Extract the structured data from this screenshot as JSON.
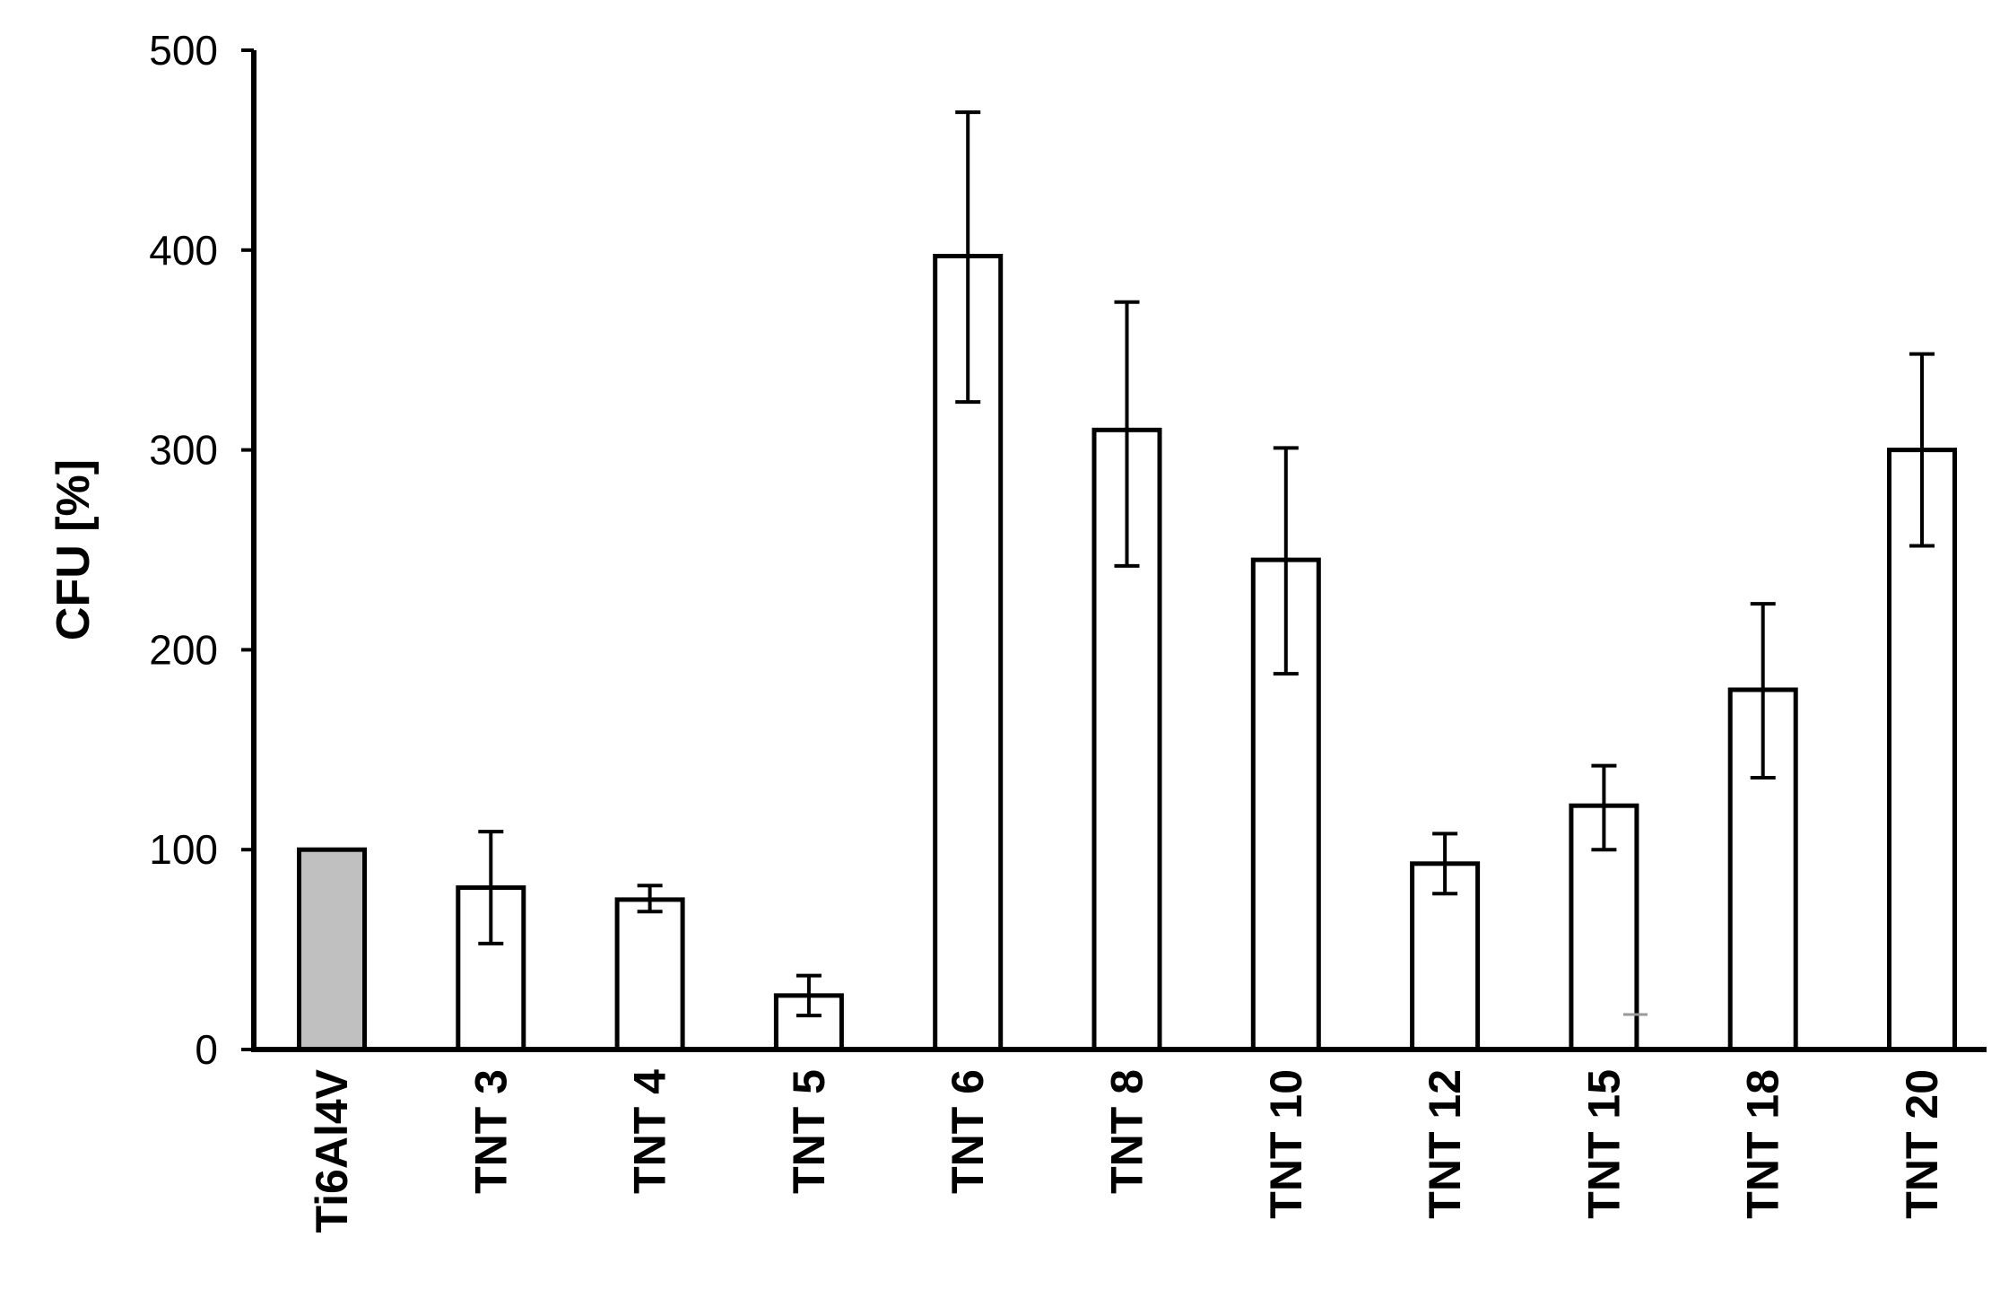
{
  "chart_data": {
    "type": "bar",
    "title": "",
    "xlabel": "",
    "ylabel": "CFU [%]",
    "ylim": [
      0,
      500
    ],
    "yticks": [
      "0",
      "100",
      "200",
      "300",
      "400",
      "500"
    ],
    "grid": false,
    "legend": "none",
    "categories": [
      "Ti6Al4V",
      "TNT 3",
      "TNT 4",
      "TNT 5",
      "TNT 6",
      "TNT 8",
      "TNT 10",
      "TNT 12",
      "TNT 15",
      "TNT 18",
      "TNT 20"
    ],
    "values": [
      100,
      81,
      75,
      27,
      397,
      310,
      245,
      93,
      122,
      180,
      300
    ],
    "error_low": [
      null,
      53,
      69,
      17,
      324,
      242,
      188,
      78,
      100,
      136,
      252
    ],
    "error_high": [
      null,
      109,
      82,
      37,
      469,
      374,
      301,
      108,
      142,
      223,
      348
    ],
    "colors": {
      "reference_fill": "#c0c0c0",
      "bar_fill": "#ffffff",
      "stroke": "#000000",
      "stray_mark": "#999999"
    }
  }
}
